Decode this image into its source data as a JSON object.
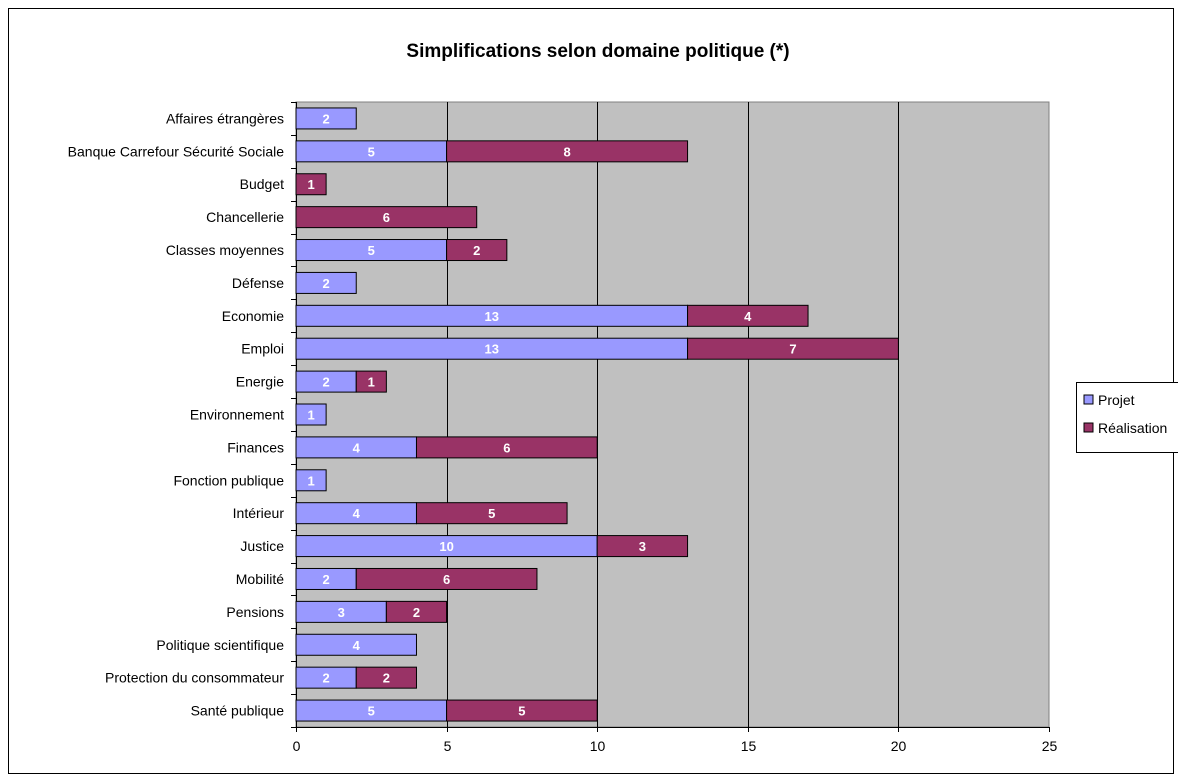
{
  "chart_data": {
    "type": "bar",
    "orientation": "horizontal",
    "stacked": true,
    "title": "Simplifications selon domaine politique (*)",
    "categories": [
      "Affaires étrangères",
      "Banque Carrefour Sécurité Sociale",
      "Budget",
      "Chancellerie",
      "Classes moyennes",
      "Défense",
      "Economie",
      "Emploi",
      "Energie",
      "Environnement",
      "Finances",
      "Fonction publique",
      "Intérieur",
      "Justice",
      "Mobilité",
      "Pensions",
      "Politique scientifique",
      "Protection du consommateur",
      "Santé publique"
    ],
    "series": [
      {
        "name": "Projet",
        "color": "#9999ff",
        "values": [
          2,
          5,
          0,
          0,
          5,
          2,
          13,
          13,
          2,
          1,
          4,
          1,
          4,
          10,
          2,
          3,
          4,
          2,
          5
        ]
      },
      {
        "name": "Réalisation",
        "color": "#993366",
        "values": [
          0,
          8,
          1,
          6,
          2,
          0,
          4,
          7,
          1,
          0,
          6,
          0,
          5,
          3,
          6,
          2,
          0,
          2,
          5
        ]
      }
    ],
    "xlim": [
      0,
      25
    ],
    "xticks": [
      "0",
      "5",
      "10",
      "15",
      "20",
      "25"
    ],
    "grid": true,
    "plot_background": "#c0c0c0",
    "legend_position": "right"
  }
}
